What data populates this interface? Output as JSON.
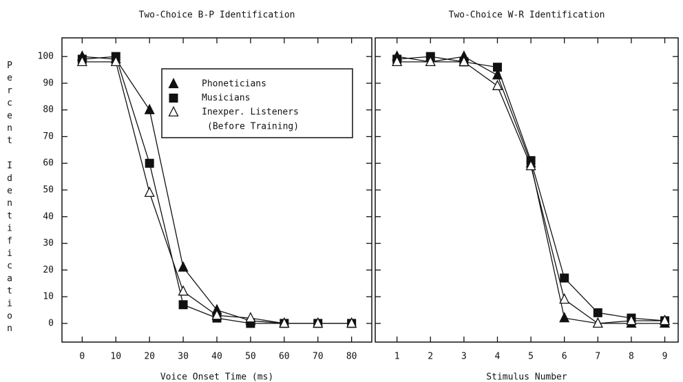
{
  "chart_data": [
    {
      "type": "line",
      "title": "Two-Choice B-P Identification",
      "xlabel": "Voice Onset Time (ms)",
      "ylabel": "Percent Identification",
      "x": [
        0,
        10,
        20,
        30,
        40,
        50,
        60,
        70,
        80
      ],
      "series": [
        {
          "name": "Phoneticians",
          "color": "#111111",
          "marker": "triangle-filled",
          "values": [
            100,
            99,
            80,
            21,
            5,
            1,
            0,
            0,
            0
          ]
        },
        {
          "name": "Musicians",
          "color": "#111111",
          "marker": "square-filled",
          "values": [
            99,
            100,
            60,
            7,
            2,
            0,
            0,
            0,
            0
          ]
        },
        {
          "name": "Inexper. Listeners",
          "color": "#111111",
          "marker": "triangle-open",
          "values": [
            98,
            98,
            49,
            12,
            3,
            2,
            0,
            0,
            0
          ]
        }
      ],
      "legend_note": "(Before Training)",
      "xlim": [
        -6,
        86
      ],
      "xticks": [
        0,
        10,
        20,
        30,
        40,
        50,
        60,
        70,
        80
      ],
      "ylim": [
        -7,
        107
      ],
      "yticks": [
        0,
        10,
        20,
        30,
        40,
        50,
        60,
        70,
        80,
        90,
        100
      ],
      "ytick_labels": true,
      "legend": true
    },
    {
      "type": "line",
      "title": "Two-Choice W-R Identification",
      "xlabel": "Stimulus Number",
      "x": [
        1,
        2,
        3,
        4,
        5,
        6,
        7,
        8,
        9
      ],
      "series": [
        {
          "color": "#111111",
          "marker": "triangle-filled",
          "values": [
            100,
            98,
            100,
            93,
            60,
            2,
            0,
            0,
            0
          ]
        },
        {
          "color": "#111111",
          "marker": "square-filled",
          "values": [
            99,
            100,
            98,
            96,
            61,
            17,
            4,
            2,
            1
          ]
        },
        {
          "color": "#111111",
          "marker": "triangle-open",
          "values": [
            98,
            98,
            98,
            89,
            59,
            9,
            0,
            1,
            1
          ]
        }
      ],
      "xlim": [
        0.35,
        9.4
      ],
      "xticks": [
        1,
        2,
        3,
        4,
        5,
        6,
        7,
        8,
        9
      ],
      "ylim": [
        -7,
        107
      ],
      "yticks": [
        0,
        10,
        20,
        30,
        40,
        50,
        60,
        70,
        80,
        90,
        100
      ],
      "ytick_labels": false,
      "legend": false
    }
  ]
}
